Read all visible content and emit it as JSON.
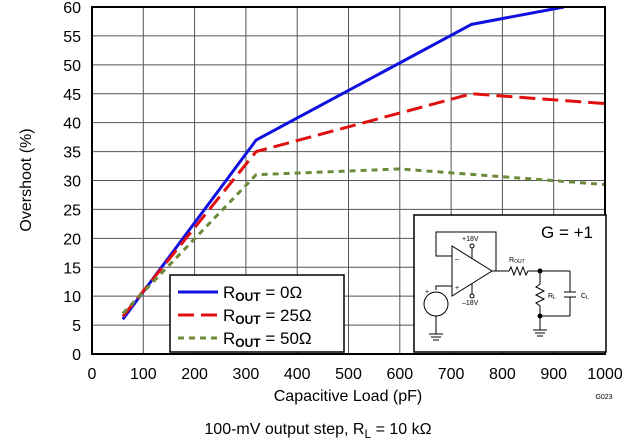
{
  "chart_data": {
    "type": "line",
    "xlabel": "Capacitive Load (pF)",
    "ylabel": "Overshoot (%)",
    "xlim": [
      0,
      1000
    ],
    "ylim": [
      0,
      60
    ],
    "x_ticks": [
      0,
      100,
      200,
      300,
      400,
      500,
      600,
      700,
      800,
      900,
      1000
    ],
    "y_ticks": [
      0,
      5,
      10,
      15,
      20,
      25,
      30,
      35,
      40,
      45,
      50,
      55,
      60
    ],
    "grid": true,
    "legend_position": "bottom-left",
    "series": [
      {
        "name": "0Ω",
        "color": "#1010e0",
        "dash": "solid",
        "x": [
          60,
          320,
          740,
          920
        ],
        "y": [
          6,
          37,
          57,
          60
        ]
      },
      {
        "name": "25Ω",
        "color": "#e01010",
        "dash": "long-dash",
        "x": [
          60,
          320,
          740,
          1000
        ],
        "y": [
          6.5,
          35,
          45,
          43.3
        ]
      },
      {
        "name": "50Ω",
        "color": "#6b8a3a",
        "dash": "short-dash",
        "x": [
          60,
          320,
          600,
          1000
        ],
        "y": [
          7,
          31,
          32,
          29.3
        ]
      }
    ],
    "legend_prefix_main": "R",
    "legend_prefix_sub": "OUT",
    "legend_eq": " = ",
    "inset": {
      "gain_label": "G = +1",
      "vplus": "+18V",
      "vminus": "–18V",
      "minus_sign": "–",
      "plus_sign": "+",
      "rout_main": "R",
      "rout_sub": "OUT",
      "rl_main": "R",
      "rl_sub": "L",
      "cl_main": "C",
      "cl_sub": "L"
    },
    "caption_main": "100-mV output step, R",
    "caption_sub": "L",
    "caption_tail": " = 10 kΩ",
    "figure_id": "G023"
  }
}
